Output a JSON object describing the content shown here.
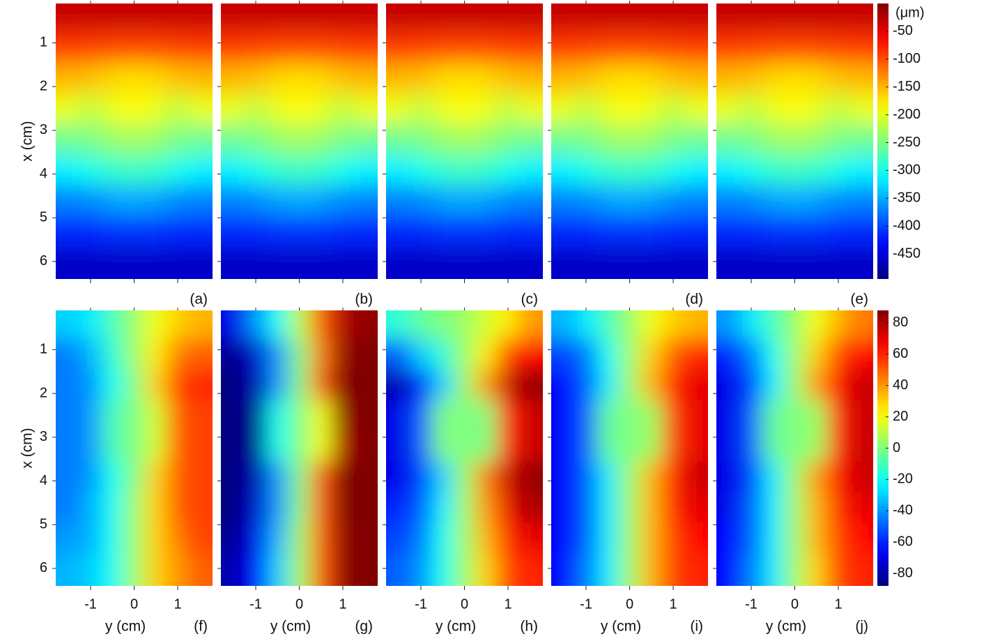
{
  "chart_data": [
    {
      "type": "heatmap",
      "panel_label": "(a)",
      "ylabel": "x (cm)",
      "colormap": "jet",
      "clim": [
        -495,
        0
      ],
      "xlim": [
        -1.8,
        1.8
      ],
      "ylim": [
        0.1,
        6.4
      ],
      "xticks": [
        -1,
        0,
        1
      ],
      "yticks": [
        1,
        2,
        3,
        4,
        5,
        6
      ],
      "xtick_labels": false,
      "ytick_labels": true,
      "x": [
        0.4,
        1.1,
        1.8,
        2.5,
        3.2,
        3.9,
        4.6,
        5.3,
        6.0
      ],
      "y": [
        -1.5,
        -1,
        -0.5,
        0,
        0.5,
        1,
        1.5
      ],
      "values": [
        [
          -35,
          -35,
          -35,
          -35,
          -35,
          -35,
          -35
        ],
        [
          -90,
          -92,
          -95,
          -95,
          -95,
          -92,
          -90
        ],
        [
          -150,
          -155,
          -165,
          -170,
          -165,
          -155,
          -150
        ],
        [
          -195,
          -215,
          -195,
          -185,
          -195,
          -215,
          -195
        ],
        [
          -255,
          -250,
          -235,
          -230,
          -235,
          -250,
          -255
        ],
        [
          -315,
          -300,
          -285,
          -280,
          -285,
          -300,
          -315
        ],
        [
          -370,
          -365,
          -355,
          -350,
          -355,
          -365,
          -370
        ],
        [
          -415,
          -415,
          -410,
          -410,
          -410,
          -415,
          -415
        ],
        [
          -460,
          -460,
          -460,
          -460,
          -460,
          -460,
          -460
        ]
      ]
    },
    {
      "type": "heatmap",
      "panel_label": "(b)",
      "colormap": "jet",
      "clim": [
        -495,
        0
      ],
      "xlim": [
        -1.8,
        1.8
      ],
      "ylim": [
        0.1,
        6.4
      ],
      "xticks": [
        -1,
        0,
        1
      ],
      "yticks": [
        1,
        2,
        3,
        4,
        5,
        6
      ],
      "xtick_labels": false,
      "ytick_labels": false,
      "x": [
        0.4,
        1.1,
        1.8,
        2.5,
        3.2,
        3.9,
        4.6,
        5.3,
        6.0
      ],
      "y": [
        -1.5,
        -1,
        -0.5,
        0,
        0.5,
        1,
        1.5
      ],
      "values": [
        [
          -35,
          -35,
          -35,
          -35,
          -35,
          -35,
          -35
        ],
        [
          -90,
          -92,
          -95,
          -95,
          -95,
          -92,
          -90
        ],
        [
          -150,
          -155,
          -165,
          -170,
          -165,
          -155,
          -150
        ],
        [
          -195,
          -215,
          -195,
          -185,
          -195,
          -215,
          -195
        ],
        [
          -255,
          -250,
          -235,
          -230,
          -235,
          -250,
          -255
        ],
        [
          -315,
          -300,
          -285,
          -280,
          -285,
          -300,
          -315
        ],
        [
          -370,
          -365,
          -355,
          -350,
          -355,
          -365,
          -370
        ],
        [
          -415,
          -415,
          -410,
          -410,
          -410,
          -415,
          -415
        ],
        [
          -460,
          -460,
          -460,
          -460,
          -460,
          -460,
          -460
        ]
      ]
    },
    {
      "type": "heatmap",
      "panel_label": "(c)",
      "colormap": "jet",
      "clim": [
        -495,
        0
      ],
      "xlim": [
        -1.8,
        1.8
      ],
      "ylim": [
        0.1,
        6.4
      ],
      "xticks": [
        -1,
        0,
        1
      ],
      "yticks": [
        1,
        2,
        3,
        4,
        5,
        6
      ],
      "xtick_labels": false,
      "ytick_labels": false,
      "x": [
        0.4,
        1.1,
        1.8,
        2.5,
        3.2,
        3.9,
        4.6,
        5.3,
        6.0
      ],
      "y": [
        -1.5,
        -1,
        -0.5,
        0,
        0.5,
        1,
        1.5
      ],
      "values": [
        [
          -35,
          -35,
          -35,
          -35,
          -35,
          -35,
          -35
        ],
        [
          -90,
          -92,
          -95,
          -95,
          -95,
          -92,
          -90
        ],
        [
          -150,
          -155,
          -165,
          -170,
          -165,
          -155,
          -150
        ],
        [
          -195,
          -215,
          -195,
          -185,
          -195,
          -215,
          -195
        ],
        [
          -255,
          -250,
          -235,
          -230,
          -235,
          -250,
          -255
        ],
        [
          -315,
          -300,
          -285,
          -280,
          -285,
          -300,
          -315
        ],
        [
          -370,
          -365,
          -355,
          -350,
          -355,
          -365,
          -370
        ],
        [
          -415,
          -415,
          -410,
          -410,
          -410,
          -415,
          -415
        ],
        [
          -460,
          -460,
          -460,
          -460,
          -460,
          -460,
          -460
        ]
      ]
    },
    {
      "type": "heatmap",
      "panel_label": "(d)",
      "colormap": "jet",
      "clim": [
        -495,
        0
      ],
      "xlim": [
        -1.8,
        1.8
      ],
      "ylim": [
        0.1,
        6.4
      ],
      "xticks": [
        -1,
        0,
        1
      ],
      "yticks": [
        1,
        2,
        3,
        4,
        5,
        6
      ],
      "xtick_labels": false,
      "ytick_labels": false,
      "x": [
        0.4,
        1.1,
        1.8,
        2.5,
        3.2,
        3.9,
        4.6,
        5.3,
        6.0
      ],
      "y": [
        -1.5,
        -1,
        -0.5,
        0,
        0.5,
        1,
        1.5
      ],
      "values": [
        [
          -35,
          -35,
          -35,
          -35,
          -35,
          -35,
          -35
        ],
        [
          -90,
          -92,
          -95,
          -95,
          -95,
          -92,
          -90
        ],
        [
          -150,
          -155,
          -165,
          -170,
          -165,
          -155,
          -150
        ],
        [
          -195,
          -215,
          -195,
          -185,
          -195,
          -215,
          -195
        ],
        [
          -255,
          -250,
          -235,
          -230,
          -235,
          -250,
          -255
        ],
        [
          -315,
          -300,
          -285,
          -280,
          -285,
          -300,
          -315
        ],
        [
          -370,
          -365,
          -355,
          -350,
          -355,
          -365,
          -370
        ],
        [
          -415,
          -415,
          -410,
          -410,
          -410,
          -415,
          -415
        ],
        [
          -460,
          -460,
          -460,
          -460,
          -460,
          -460,
          -460
        ]
      ]
    },
    {
      "type": "heatmap",
      "panel_label": "(e)",
      "colormap": "jet",
      "clim": [
        -495,
        0
      ],
      "xlim": [
        -1.8,
        1.8
      ],
      "ylim": [
        0.1,
        6.4
      ],
      "xticks": [
        -1,
        0,
        1
      ],
      "yticks": [
        1,
        2,
        3,
        4,
        5,
        6
      ],
      "xtick_labels": false,
      "ytick_labels": false,
      "colorbar": {
        "label": "(μm)",
        "ticks": [
          -50,
          -100,
          -150,
          -200,
          -250,
          -300,
          -350,
          -400,
          -450
        ]
      },
      "x": [
        0.4,
        1.1,
        1.8,
        2.5,
        3.2,
        3.9,
        4.6,
        5.3,
        6.0
      ],
      "y": [
        -1.5,
        -1,
        -0.5,
        0,
        0.5,
        1,
        1.5
      ],
      "values": [
        [
          -35,
          -35,
          -35,
          -35,
          -35,
          -35,
          -35
        ],
        [
          -90,
          -92,
          -95,
          -95,
          -95,
          -92,
          -90
        ],
        [
          -150,
          -155,
          -165,
          -170,
          -165,
          -155,
          -150
        ],
        [
          -195,
          -215,
          -195,
          -185,
          -195,
          -215,
          -195
        ],
        [
          -255,
          -250,
          -235,
          -230,
          -235,
          -250,
          -255
        ],
        [
          -315,
          -300,
          -285,
          -280,
          -285,
          -300,
          -315
        ],
        [
          -370,
          -365,
          -355,
          -350,
          -355,
          -365,
          -370
        ],
        [
          -415,
          -415,
          -410,
          -410,
          -410,
          -415,
          -415
        ],
        [
          -460,
          -460,
          -460,
          -460,
          -460,
          -460,
          -460
        ]
      ]
    },
    {
      "type": "heatmap",
      "panel_label": "(f)",
      "xlabel": "y (cm)",
      "ylabel": "x (cm)",
      "colormap": "jet",
      "clim": [
        -88,
        88
      ],
      "xlim": [
        -1.8,
        1.8
      ],
      "ylim": [
        0.1,
        6.4
      ],
      "xticks": [
        -1,
        0,
        1
      ],
      "yticks": [
        1,
        2,
        3,
        4,
        5,
        6
      ],
      "xtick_labels": true,
      "ytick_labels": true,
      "x": [
        0.4,
        1.1,
        1.8,
        2.5,
        3.2,
        3.9,
        4.6,
        5.3,
        6.0
      ],
      "y": [
        -1.5,
        -1,
        -0.5,
        0,
        0.5,
        1,
        1.5
      ],
      "values": [
        [
          -30,
          -25,
          -10,
          5,
          20,
          30,
          35
        ],
        [
          -45,
          -35,
          -15,
          5,
          25,
          45,
          50
        ],
        [
          -45,
          -40,
          -20,
          0,
          30,
          55,
          60
        ],
        [
          -45,
          -40,
          -10,
          0,
          15,
          50,
          55
        ],
        [
          -45,
          -40,
          -10,
          0,
          15,
          50,
          55
        ],
        [
          -45,
          -40,
          -20,
          0,
          30,
          50,
          55
        ],
        [
          -45,
          -35,
          -20,
          5,
          30,
          50,
          55
        ],
        [
          -40,
          -35,
          -20,
          5,
          30,
          45,
          55
        ],
        [
          -35,
          -30,
          -20,
          5,
          30,
          40,
          50
        ]
      ]
    },
    {
      "type": "heatmap",
      "panel_label": "(g)",
      "xlabel": "y (cm)",
      "colormap": "jet",
      "clim": [
        -88,
        88
      ],
      "xlim": [
        -1.8,
        1.8
      ],
      "ylim": [
        0.1,
        6.4
      ],
      "xticks": [
        -1,
        0,
        1
      ],
      "yticks": [
        1,
        2,
        3,
        4,
        5,
        6
      ],
      "xtick_labels": true,
      "ytick_labels": false,
      "x": [
        0.4,
        1.1,
        1.8,
        2.5,
        3.2,
        3.9,
        4.6,
        5.3,
        6.0
      ],
      "y": [
        -1.5,
        -1,
        -0.5,
        0,
        0.5,
        1,
        1.5
      ],
      "values": [
        [
          -70,
          -40,
          -20,
          10,
          50,
          80,
          85
        ],
        [
          -85,
          -75,
          -40,
          0,
          45,
          85,
          88
        ],
        [
          -88,
          -80,
          -40,
          0,
          50,
          88,
          88
        ],
        [
          -88,
          -85,
          -20,
          0,
          20,
          85,
          88
        ],
        [
          -88,
          -85,
          -20,
          0,
          20,
          80,
          88
        ],
        [
          -88,
          -80,
          -40,
          0,
          50,
          88,
          88
        ],
        [
          -88,
          -75,
          -40,
          0,
          50,
          88,
          88
        ],
        [
          -85,
          -70,
          -35,
          5,
          50,
          85,
          88
        ],
        [
          -80,
          -65,
          -30,
          5,
          50,
          85,
          88
        ]
      ]
    },
    {
      "type": "heatmap",
      "panel_label": "(h)",
      "xlabel": "y (cm)",
      "colormap": "jet",
      "clim": [
        -88,
        88
      ],
      "xlim": [
        -1.8,
        1.8
      ],
      "ylim": [
        0.1,
        6.4
      ],
      "xticks": [
        -1,
        0,
        1
      ],
      "yticks": [
        1,
        2,
        3,
        4,
        5,
        6
      ],
      "xtick_labels": true,
      "ytick_labels": false,
      "x": [
        0.4,
        1.1,
        1.8,
        2.5,
        3.2,
        3.9,
        4.6,
        5.3,
        6.0
      ],
      "y": [
        -1.5,
        -1,
        -0.5,
        0,
        0.5,
        1,
        1.5
      ],
      "values": [
        [
          -15,
          -5,
          0,
          5,
          15,
          25,
          40
        ],
        [
          -50,
          -30,
          -15,
          5,
          25,
          55,
          65
        ],
        [
          -80,
          -60,
          -30,
          5,
          40,
          75,
          85
        ],
        [
          -70,
          -50,
          0,
          0,
          0,
          60,
          75
        ],
        [
          -70,
          -50,
          0,
          0,
          0,
          60,
          75
        ],
        [
          -70,
          -55,
          -30,
          5,
          45,
          75,
          85
        ],
        [
          -60,
          -50,
          -25,
          5,
          40,
          70,
          80
        ],
        [
          -55,
          -45,
          -20,
          5,
          35,
          60,
          70
        ],
        [
          -50,
          -40,
          -20,
          5,
          30,
          55,
          60
        ]
      ]
    },
    {
      "type": "heatmap",
      "panel_label": "(i)",
      "xlabel": "y (cm)",
      "colormap": "jet",
      "clim": [
        -88,
        88
      ],
      "xlim": [
        -1.8,
        1.8
      ],
      "ylim": [
        0.1,
        6.4
      ],
      "xticks": [
        -1,
        0,
        1
      ],
      "yticks": [
        1,
        2,
        3,
        4,
        5,
        6
      ],
      "xtick_labels": true,
      "ytick_labels": false,
      "x": [
        0.4,
        1.1,
        1.8,
        2.5,
        3.2,
        3.9,
        4.6,
        5.3,
        6.0
      ],
      "y": [
        -1.5,
        -1,
        -0.5,
        0,
        0.5,
        1,
        1.5
      ],
      "values": [
        [
          -35,
          -25,
          -10,
          5,
          20,
          30,
          35
        ],
        [
          -55,
          -45,
          -20,
          5,
          30,
          50,
          60
        ],
        [
          -65,
          -50,
          -25,
          5,
          35,
          60,
          70
        ],
        [
          -65,
          -50,
          -5,
          0,
          5,
          55,
          70
        ],
        [
          -65,
          -50,
          -5,
          0,
          5,
          55,
          70
        ],
        [
          -65,
          -50,
          -25,
          5,
          35,
          60,
          75
        ],
        [
          -65,
          -50,
          -25,
          5,
          35,
          60,
          70
        ],
        [
          -65,
          -50,
          -25,
          5,
          35,
          55,
          65
        ],
        [
          -65,
          -45,
          -25,
          5,
          35,
          55,
          60
        ]
      ]
    },
    {
      "type": "heatmap",
      "panel_label": "(j)",
      "xlabel": "y (cm)",
      "colormap": "jet",
      "clim": [
        -88,
        88
      ],
      "xlim": [
        -1.8,
        1.8
      ],
      "ylim": [
        0.1,
        6.4
      ],
      "xticks": [
        -1,
        0,
        1
      ],
      "yticks": [
        1,
        2,
        3,
        4,
        5,
        6
      ],
      "xtick_labels": true,
      "ytick_labels": false,
      "colorbar": {
        "ticks": [
          80,
          60,
          40,
          20,
          0,
          -20,
          -40,
          -60,
          -80
        ]
      },
      "x": [
        0.4,
        1.1,
        1.8,
        2.5,
        3.2,
        3.9,
        4.6,
        5.3,
        6.0
      ],
      "y": [
        -1.5,
        -1,
        -0.5,
        0,
        0.5,
        1,
        1.5
      ],
      "values": [
        [
          -40,
          -25,
          -10,
          5,
          20,
          35,
          45
        ],
        [
          -60,
          -45,
          -20,
          5,
          30,
          55,
          65
        ],
        [
          -70,
          -55,
          -25,
          5,
          40,
          65,
          75
        ],
        [
          -70,
          -50,
          -5,
          0,
          5,
          60,
          75
        ],
        [
          -70,
          -50,
          -5,
          0,
          5,
          60,
          75
        ],
        [
          -70,
          -55,
          -25,
          5,
          40,
          65,
          75
        ],
        [
          -70,
          -50,
          -25,
          5,
          35,
          60,
          70
        ],
        [
          -65,
          -50,
          -25,
          5,
          35,
          55,
          65
        ],
        [
          -65,
          -45,
          -25,
          5,
          30,
          55,
          60
        ]
      ]
    }
  ]
}
